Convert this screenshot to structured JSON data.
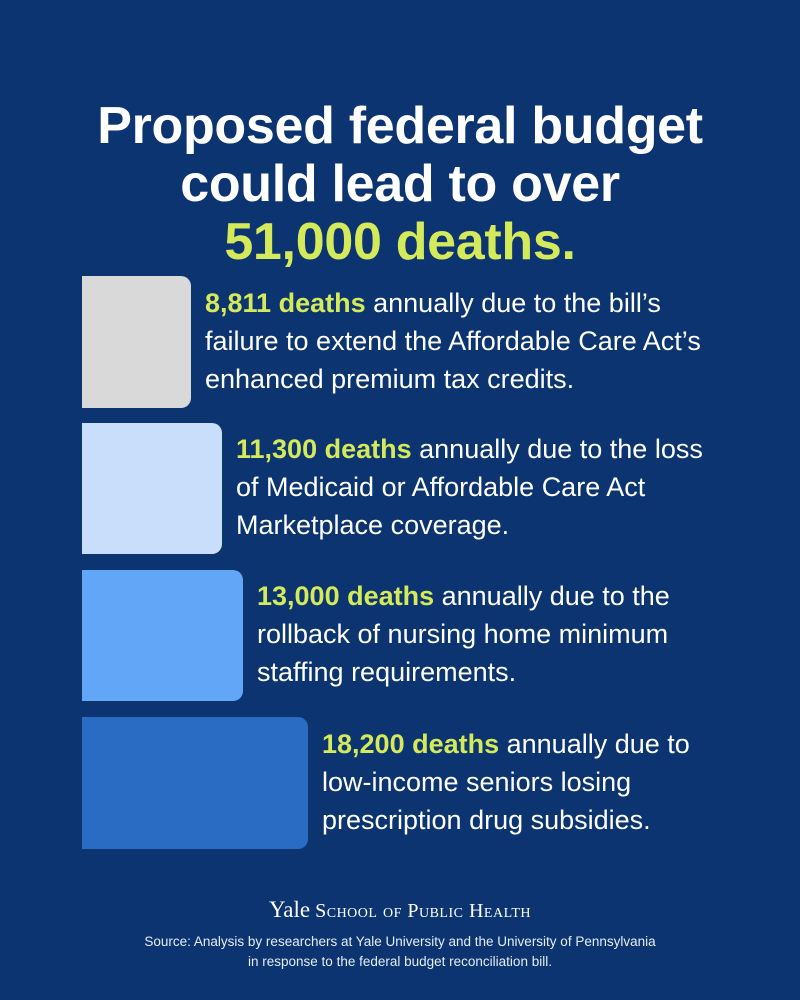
{
  "title": {
    "line1": "Proposed federal budget",
    "line2": "could lead to over",
    "highlight": "51,000 deaths."
  },
  "chart_data": {
    "type": "bar",
    "orientation": "horizontal",
    "categories": [
      "annually due to the bill’s failure to extend the Affordable Care Act’s enhanced premium tax credits.",
      "annually due to the loss of Medicaid or Affordable Care Act Marketplace coverage.",
      "annually due to the rollback of nursing home minimum staffing requirements.",
      "annually due to low-income seniors losing prescription drug subsidies."
    ],
    "values": [
      8811,
      11300,
      13000,
      18200
    ],
    "value_labels": [
      "8,811 deaths",
      "11,300 deaths",
      "13,000 deaths",
      "18,200 deaths"
    ],
    "colors": [
      "#d9d9d9",
      "#c9defa",
      "#62a6f8",
      "#2a6bc4"
    ],
    "grid": false,
    "title": "",
    "xlabel": "",
    "ylabel": ""
  },
  "rows": [
    {
      "value_label": "8,811 deaths",
      "line1_rest": "annually due to the bill’s",
      "line2": "failure to extend the Affordable Care Act’s",
      "line3": "enhanced premium tax credits."
    },
    {
      "value_label": "11,300 deaths",
      "line1_rest": "annually due to the loss",
      "line2": "of Medicaid or Affordable Care Act",
      "line3": "Marketplace coverage."
    },
    {
      "value_label": "13,000 deaths",
      "line1_rest": "annually due to the",
      "line2": "rollback of nursing home minimum",
      "line3": "staffing requirements."
    },
    {
      "value_label": "18,200 deaths",
      "line1_rest": "annually due to",
      "line2": "low-income seniors losing",
      "line3": "prescription drug subsidies."
    }
  ],
  "logo": {
    "yale": "Yale",
    "school": "School of Public Health"
  },
  "source": {
    "line1": "Source: Analysis by researchers at Yale University and the University of Pennsylvania",
    "line2": "in response to the federal budget reconciliation bill."
  }
}
